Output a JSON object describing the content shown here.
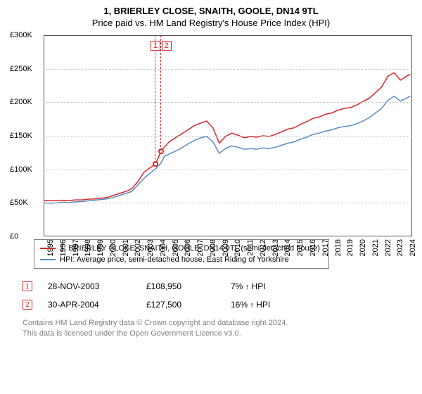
{
  "title": "1, BRIERLEY CLOSE, SNAITH, GOOLE, DN14 9TL",
  "subtitle": "Price paid vs. HM Land Registry's House Price Index (HPI)",
  "chart": {
    "type": "line",
    "background_color": "#ffffff",
    "grid_color": "#bbbbbb",
    "border_color": "#555555",
    "label_fontsize": 11,
    "ylim": [
      0,
      300000
    ],
    "ytick_step": 50000,
    "yticks": [
      "£0",
      "£50K",
      "£100K",
      "£150K",
      "£200K",
      "£250K",
      "£300K"
    ],
    "xlim": [
      1995,
      2024.5
    ],
    "xticks": [
      "1995",
      "1996",
      "1997",
      "1998",
      "1999",
      "2000",
      "2001",
      "2002",
      "2003",
      "2004",
      "2005",
      "2006",
      "2007",
      "2008",
      "2009",
      "2010",
      "2011",
      "2012",
      "2013",
      "2014",
      "2015",
      "2016",
      "2017",
      "2018",
      "2019",
      "2020",
      "2021",
      "2022",
      "2023",
      "2024"
    ],
    "series": [
      {
        "name": "1, BRIERLEY CLOSE, SNAITH, GOOLE, DN14 9TL (semi-detached house)",
        "color": "#d62728",
        "line_width": 1.5,
        "points": [
          [
            1995,
            55000
          ],
          [
            1995.5,
            54000
          ],
          [
            1996,
            54500
          ],
          [
            1996.5,
            55000
          ],
          [
            1997,
            54500
          ],
          [
            1997.5,
            55500
          ],
          [
            1998,
            55500
          ],
          [
            1998.5,
            56500
          ],
          [
            1999,
            57000
          ],
          [
            1999.5,
            58000
          ],
          [
            2000,
            59000
          ],
          [
            2000.5,
            62000
          ],
          [
            2001,
            65000
          ],
          [
            2001.5,
            68000
          ],
          [
            2002,
            72000
          ],
          [
            2002.5,
            83000
          ],
          [
            2003,
            97000
          ],
          [
            2003.5,
            104000
          ],
          [
            2003.91,
            108950
          ],
          [
            2004.33,
            127500
          ],
          [
            2004.6,
            134000
          ],
          [
            2005,
            142000
          ],
          [
            2005.5,
            148000
          ],
          [
            2006,
            154000
          ],
          [
            2006.5,
            160000
          ],
          [
            2007,
            166000
          ],
          [
            2007.5,
            170000
          ],
          [
            2008,
            173000
          ],
          [
            2008.5,
            163000
          ],
          [
            2009,
            140000
          ],
          [
            2009.5,
            150000
          ],
          [
            2010,
            155000
          ],
          [
            2010.5,
            152000
          ],
          [
            2011,
            148000
          ],
          [
            2011.5,
            150000
          ],
          [
            2012,
            149000
          ],
          [
            2012.5,
            151000
          ],
          [
            2013,
            150000
          ],
          [
            2013.5,
            153000
          ],
          [
            2014,
            157000
          ],
          [
            2014.5,
            161000
          ],
          [
            2015,
            163000
          ],
          [
            2015.5,
            168000
          ],
          [
            2016,
            172000
          ],
          [
            2016.5,
            177000
          ],
          [
            2017,
            179000
          ],
          [
            2017.5,
            183000
          ],
          [
            2018,
            185000
          ],
          [
            2018.5,
            189000
          ],
          [
            2019,
            192000
          ],
          [
            2019.5,
            193000
          ],
          [
            2020,
            197000
          ],
          [
            2020.5,
            202000
          ],
          [
            2021,
            207000
          ],
          [
            2021.5,
            215000
          ],
          [
            2022,
            224000
          ],
          [
            2022.5,
            240000
          ],
          [
            2023,
            245000
          ],
          [
            2023.5,
            234000
          ],
          [
            2024,
            240000
          ],
          [
            2024.3,
            243000
          ]
        ]
      },
      {
        "name": "HPI: Average price, semi-detached house, East Riding of Yorkshire",
        "color": "#5a8bc4",
        "line_width": 1.5,
        "points": [
          [
            1995,
            51000
          ],
          [
            1995.5,
            50500
          ],
          [
            1996,
            51000
          ],
          [
            1996.5,
            52000
          ],
          [
            1997,
            51500
          ],
          [
            1997.5,
            52500
          ],
          [
            1998,
            53000
          ],
          [
            1998.5,
            54000
          ],
          [
            1999,
            55000
          ],
          [
            1999.5,
            56000
          ],
          [
            2000,
            57000
          ],
          [
            2000.5,
            59000
          ],
          [
            2001,
            62000
          ],
          [
            2001.5,
            65000
          ],
          [
            2002,
            68000
          ],
          [
            2002.5,
            78000
          ],
          [
            2003,
            88000
          ],
          [
            2003.5,
            96000
          ],
          [
            2003.91,
            102000
          ],
          [
            2004.33,
            110000
          ],
          [
            2004.6,
            120000
          ],
          [
            2005,
            124000
          ],
          [
            2005.5,
            128000
          ],
          [
            2006,
            133000
          ],
          [
            2006.5,
            139000
          ],
          [
            2007,
            144000
          ],
          [
            2007.5,
            148000
          ],
          [
            2008,
            150000
          ],
          [
            2008.5,
            142000
          ],
          [
            2009,
            125000
          ],
          [
            2009.5,
            132000
          ],
          [
            2010,
            136000
          ],
          [
            2010.5,
            134000
          ],
          [
            2011,
            131000
          ],
          [
            2011.5,
            132000
          ],
          [
            2012,
            131000
          ],
          [
            2012.5,
            133000
          ],
          [
            2013,
            132000
          ],
          [
            2013.5,
            134000
          ],
          [
            2014,
            137000
          ],
          [
            2014.5,
            140000
          ],
          [
            2015,
            142000
          ],
          [
            2015.5,
            146000
          ],
          [
            2016,
            149000
          ],
          [
            2016.5,
            153000
          ],
          [
            2017,
            155000
          ],
          [
            2017.5,
            158000
          ],
          [
            2018,
            160000
          ],
          [
            2018.5,
            163000
          ],
          [
            2019,
            165000
          ],
          [
            2019.5,
            166000
          ],
          [
            2020,
            169000
          ],
          [
            2020.5,
            173000
          ],
          [
            2021,
            178000
          ],
          [
            2021.5,
            185000
          ],
          [
            2022,
            192000
          ],
          [
            2022.5,
            204000
          ],
          [
            2023,
            210000
          ],
          [
            2023.5,
            203000
          ],
          [
            2024,
            207000
          ],
          [
            2024.3,
            210000
          ]
        ]
      }
    ],
    "markers": [
      {
        "label": "1",
        "x": 2003.91,
        "y": 108950,
        "color": "#d62728"
      },
      {
        "label": "2",
        "x": 2004.33,
        "y": 127500,
        "color": "#d62728"
      }
    ]
  },
  "legend": {
    "items": [
      {
        "color": "#d62728",
        "label": "1, BRIERLEY CLOSE, SNAITH, GOOLE, DN14 9TL (semi-detached house)"
      },
      {
        "color": "#5a8bc4",
        "label": "HPI: Average price, semi-detached house, East Riding of Yorkshire"
      }
    ]
  },
  "transactions": [
    {
      "badge": "1",
      "date": "28-NOV-2003",
      "price": "£108,950",
      "pct": "7%",
      "arrow": "↑",
      "suffix": "HPI"
    },
    {
      "badge": "2",
      "date": "30-APR-2004",
      "price": "£127,500",
      "pct": "16%",
      "arrow": "↑",
      "suffix": "HPI"
    }
  ],
  "attribution": {
    "line1": "Contains HM Land Registry data © Crown copyright and database right 2024.",
    "line2": "This data is licensed under the Open Government Licence v3.0."
  }
}
